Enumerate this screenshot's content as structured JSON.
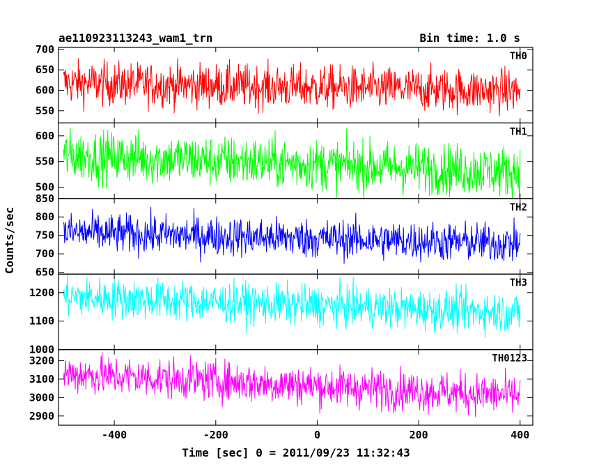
{
  "chart_data": {
    "type": "line",
    "title_left": "ae110923113243_wam1_trn",
    "title_right": "Bin time: 1.0 s",
    "xlabel": "Time [sec] 0 = 2011/09/23 11:32:43",
    "ylabel": "Counts/sec",
    "xlim": [
      -510,
      425
    ],
    "x_ticks": [
      -400,
      -200,
      0,
      200,
      400
    ],
    "data_x_range": [
      -500,
      400
    ],
    "bin_time_s": 1.0,
    "grid": false,
    "panels": [
      {
        "name": "TH0",
        "color": "#ff0000",
        "ylim": [
          520,
          705
        ],
        "y_ticks": [
          550,
          600,
          650,
          700
        ],
        "trend": {
          "start": 618,
          "end": 598
        },
        "noise": 27
      },
      {
        "name": "TH1",
        "color": "#00ff00",
        "ylim": [
          478,
          625
        ],
        "y_ticks": [
          500,
          550,
          600
        ],
        "trend": {
          "start": 562,
          "end": 530
        },
        "noise": 25
      },
      {
        "name": "TH2",
        "color": "#0000ff",
        "ylim": [
          645,
          850
        ],
        "y_ticks": [
          650,
          700,
          750,
          800,
          850
        ],
        "trend": {
          "start": 758,
          "end": 728
        },
        "noise": 27
      },
      {
        "name": "TH3",
        "color": "#00ffff",
        "ylim": [
          1000,
          1265
        ],
        "y_ticks": [
          1000,
          1100,
          1200
        ],
        "trend": {
          "start": 1185,
          "end": 1130
        },
        "noise": 36
      },
      {
        "name": "TH0123",
        "color": "#ff00ff",
        "ylim": [
          2850,
          3260
        ],
        "y_ticks": [
          2900,
          3000,
          3100,
          3200
        ],
        "trend": {
          "start": 3130,
          "end": 3010
        },
        "noise": 55
      }
    ]
  }
}
